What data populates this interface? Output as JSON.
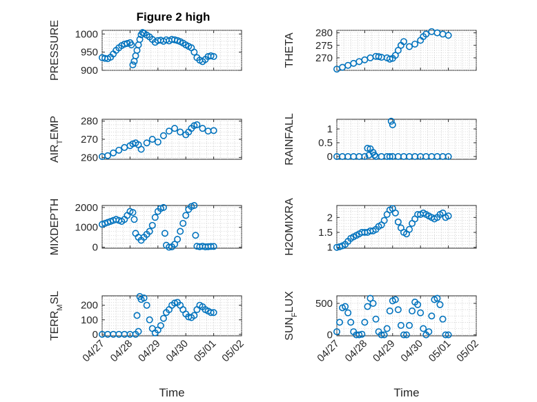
{
  "title": "Figure 2 high",
  "marker_color": "#0072BD",
  "chart_data": [
    {
      "type": "scatter",
      "ylabel": "PRESSURE",
      "ylim": [
        900,
        1010
      ],
      "yticks": [
        900,
        950,
        1000
      ],
      "ytick_labels": [
        "900",
        "950",
        "1000"
      ],
      "x": [
        0,
        0.1,
        0.2,
        0.3,
        0.4,
        0.5,
        0.6,
        0.7,
        0.8,
        0.9,
        1.0,
        1.05,
        1.1,
        1.15,
        1.2,
        1.25,
        1.3,
        1.35,
        1.4,
        1.45,
        1.5,
        1.6,
        1.7,
        1.8,
        1.9,
        2.0,
        2.1,
        2.2,
        2.3,
        2.4,
        2.5,
        2.6,
        2.7,
        2.8,
        2.9,
        3.0,
        3.1,
        3.2,
        3.3,
        3.4,
        3.5,
        3.6,
        3.7,
        3.8,
        3.9,
        4.0
      ],
      "y": [
        935,
        933,
        932,
        936,
        945,
        955,
        962,
        968,
        972,
        974,
        976,
        970,
        915,
        925,
        940,
        955,
        970,
        985,
        998,
        1004,
        1002,
        997,
        992,
        985,
        977,
        982,
        983,
        980,
        984,
        981,
        985,
        984,
        982,
        979,
        975,
        970,
        966,
        962,
        950,
        935,
        928,
        924,
        930,
        938,
        940,
        938
      ]
    },
    {
      "type": "scatter",
      "ylabel": "THETA",
      "ylim": [
        265,
        281
      ],
      "yticks": [
        270,
        275,
        280
      ],
      "ytick_labels": [
        "270",
        "275",
        "280"
      ],
      "x": [
        0,
        0.2,
        0.4,
        0.6,
        0.8,
        1.0,
        1.2,
        1.4,
        1.5,
        1.6,
        1.8,
        1.9,
        2.0,
        2.1,
        2.2,
        2.3,
        2.4,
        2.6,
        2.8,
        3.0,
        3.1,
        3.2,
        3.4,
        3.6,
        3.8,
        4.0
      ],
      "y": [
        265.5,
        266.2,
        267,
        267.8,
        268.5,
        269.2,
        270,
        270.6,
        270.5,
        270.2,
        270,
        269.5,
        269.8,
        271,
        273,
        275,
        276.5,
        274.5,
        275.5,
        277,
        278.5,
        279.5,
        280.5,
        280,
        279.5,
        279
      ]
    },
    {
      "type": "scatter",
      "ylabel": "AIR_TEMP",
      "ylim": [
        259,
        281
      ],
      "yticks": [
        260,
        270,
        280
      ],
      "ytick_labels": [
        "260",
        "270",
        "280"
      ],
      "x": [
        0,
        0.2,
        0.4,
        0.6,
        0.8,
        1.0,
        1.1,
        1.2,
        1.3,
        1.4,
        1.6,
        1.8,
        2.0,
        2.2,
        2.4,
        2.6,
        2.8,
        3.0,
        3.1,
        3.2,
        3.3,
        3.4,
        3.6,
        3.8,
        4.0
      ],
      "y": [
        260.5,
        261,
        262.5,
        264,
        265.5,
        266.5,
        267.5,
        268,
        267,
        264.5,
        268,
        270,
        268.5,
        272,
        274.5,
        276,
        274,
        272.5,
        274,
        276,
        277.5,
        278,
        276,
        274.5,
        274.8
      ]
    },
    {
      "type": "scatter",
      "ylabel": "RAINFALL",
      "ylim": [
        -0.1,
        1.35
      ],
      "yticks": [
        0,
        0.5,
        1
      ],
      "ytick_labels": [
        "0",
        "0.5",
        "1"
      ],
      "x": [
        0,
        0.2,
        0.4,
        0.6,
        0.8,
        1.0,
        1.1,
        1.15,
        1.2,
        1.3,
        1.35,
        1.4,
        1.6,
        1.8,
        1.9,
        2.0,
        2.2,
        2.4,
        2.6,
        2.8,
        3.0,
        3.2,
        3.4,
        3.6,
        3.8,
        4.0,
        1.95,
        2.0
      ],
      "y": [
        0,
        0,
        0,
        0,
        0,
        0,
        0.3,
        0.05,
        0.28,
        0.15,
        0.05,
        0,
        0,
        0,
        0,
        0,
        0,
        0,
        0,
        0,
        0,
        0,
        0,
        0,
        0,
        0,
        1.28,
        1.15
      ]
    },
    {
      "type": "scatter",
      "ylabel": "MIXDEPTH",
      "ylim": [
        -50,
        2100
      ],
      "yticks": [
        0,
        1000,
        2000
      ],
      "ytick_labels": [
        "0",
        "1000",
        "2000"
      ],
      "x": [
        0,
        0.1,
        0.2,
        0.3,
        0.4,
        0.5,
        0.6,
        0.7,
        0.8,
        0.9,
        1.0,
        1.1,
        1.15,
        1.2,
        1.3,
        1.4,
        1.5,
        1.6,
        1.7,
        1.8,
        1.9,
        2.0,
        2.1,
        2.2,
        2.3,
        2.4,
        2.5,
        2.6,
        2.7,
        2.8,
        2.9,
        3.0,
        3.1,
        3.2,
        3.3,
        3.4,
        3.5,
        3.6,
        3.7,
        3.8,
        3.9,
        4.0,
        2.25,
        3.35
      ],
      "y": [
        1150,
        1200,
        1250,
        1300,
        1350,
        1400,
        1350,
        1300,
        1400,
        1600,
        1800,
        1750,
        1400,
        700,
        500,
        350,
        500,
        650,
        800,
        1100,
        1500,
        1800,
        1950,
        2000,
        100,
        0,
        20,
        150,
        400,
        800,
        1200,
        1600,
        1900,
        2050,
        2100,
        50,
        30,
        50,
        20,
        30,
        40,
        40,
        700,
        600
      ]
    },
    {
      "type": "scatter",
      "ylabel": "H2OMIXRA",
      "ylim": [
        0.97,
        2.4
      ],
      "yticks": [
        1,
        1.5,
        2
      ],
      "ytick_labels": [
        "1",
        "1.5",
        "2"
      ],
      "x": [
        0,
        0.1,
        0.2,
        0.3,
        0.4,
        0.5,
        0.6,
        0.7,
        0.8,
        0.9,
        1.0,
        1.1,
        1.2,
        1.3,
        1.4,
        1.5,
        1.6,
        1.7,
        1.8,
        1.9,
        2.0,
        2.1,
        2.2,
        2.3,
        2.4,
        2.5,
        2.6,
        2.7,
        2.8,
        2.9,
        3.0,
        3.1,
        3.2,
        3.3,
        3.4,
        3.5,
        3.6,
        3.7,
        3.8,
        3.9,
        4.0
      ],
      "y": [
        1.0,
        1.02,
        1.05,
        1.1,
        1.2,
        1.3,
        1.35,
        1.4,
        1.45,
        1.5,
        1.5,
        1.5,
        1.55,
        1.55,
        1.6,
        1.7,
        1.75,
        1.9,
        2.1,
        2.25,
        2.3,
        2.15,
        1.85,
        1.65,
        1.5,
        1.45,
        1.6,
        1.8,
        1.95,
        2.1,
        2.1,
        2.15,
        2.1,
        2.05,
        2.0,
        1.95,
        2.0,
        2.1,
        2.15,
        2.0,
        2.05
      ]
    },
    {
      "type": "scatter",
      "ylabel": "TERR_MSL",
      "ylim": [
        -10,
        265
      ],
      "yticks": [
        0,
        100,
        200
      ],
      "ytick_labels": [
        "0",
        "100",
        "200"
      ],
      "x": [
        0,
        0.2,
        0.4,
        0.6,
        0.8,
        1.0,
        1.2,
        1.3,
        1.4,
        1.5,
        1.6,
        1.7,
        1.8,
        1.9,
        2.0,
        2.1,
        2.2,
        2.3,
        2.4,
        2.5,
        2.6,
        2.7,
        2.8,
        2.9,
        3.0,
        3.1,
        3.2,
        3.3,
        3.4,
        3.5,
        3.6,
        3.7,
        3.8,
        3.9,
        4.0,
        1.25,
        1.35
      ],
      "y": [
        0,
        0,
        0,
        0,
        0,
        0,
        0,
        20,
        240,
        250,
        200,
        100,
        40,
        10,
        30,
        60,
        110,
        150,
        170,
        200,
        215,
        220,
        200,
        170,
        140,
        120,
        115,
        130,
        170,
        200,
        190,
        170,
        160,
        150,
        150,
        130,
        260
      ]
    },
    {
      "type": "scatter",
      "ylabel": "SUN_FLUX",
      "ylim": [
        -15,
        620
      ],
      "yticks": [
        0,
        500
      ],
      "ytick_labels": [
        "0",
        "500"
      ],
      "x": [
        0,
        0.1,
        0.2,
        0.3,
        0.4,
        0.5,
        0.6,
        0.7,
        0.8,
        0.9,
        1.0,
        1.1,
        1.2,
        1.3,
        1.4,
        1.5,
        1.6,
        1.7,
        1.8,
        1.9,
        2.0,
        2.1,
        2.2,
        2.3,
        2.4,
        2.5,
        2.6,
        2.7,
        2.8,
        2.9,
        3.0,
        3.1,
        3.2,
        3.3,
        3.4,
        3.5,
        3.6,
        3.7,
        3.8,
        3.9,
        4.0
      ],
      "y": [
        50,
        200,
        430,
        450,
        350,
        200,
        50,
        0,
        0,
        10,
        200,
        450,
        580,
        500,
        250,
        50,
        0,
        0,
        100,
        380,
        540,
        560,
        400,
        150,
        0,
        0,
        150,
        380,
        520,
        480,
        350,
        100,
        0,
        50,
        300,
        560,
        580,
        480,
        250,
        0,
        0
      ]
    }
  ],
  "x_axis": {
    "xlim": [
      0,
      5
    ],
    "ticks": [
      0,
      1,
      2,
      3,
      4,
      5
    ],
    "tick_labels": [
      "04/27",
      "04/28",
      "04/29",
      "04/30",
      "05/01",
      "05/02"
    ],
    "label": "Time"
  }
}
